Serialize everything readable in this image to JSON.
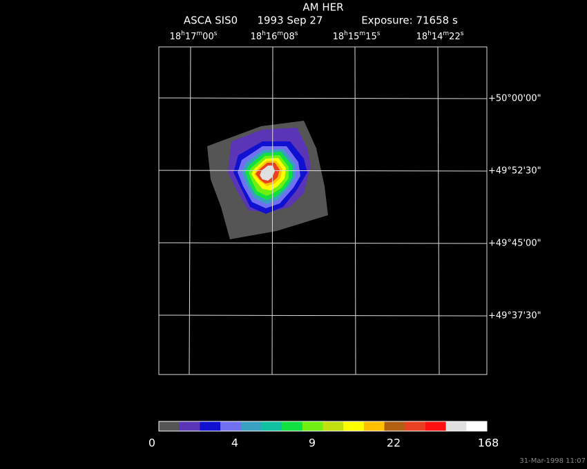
{
  "title": "AM HER",
  "subtitle": {
    "instrument": "ASCA SIS0",
    "date": "1993 Sep 27",
    "exposure": "Exposure: 71658 s"
  },
  "ra_labels": [
    "18h17m00s",
    "18h16m08s",
    "18h15m15s",
    "18h14m22s"
  ],
  "dec_labels": [
    "+50°00'00\"",
    "+49°52'30\"",
    "+49°45'00\"",
    "+49°37'30\""
  ],
  "colorbar": {
    "colors": [
      "#555555",
      "#5a35b5",
      "#1010d0",
      "#7070f0",
      "#3aa0c0",
      "#10c0a0",
      "#10e040",
      "#70f010",
      "#c0e010",
      "#ffff00",
      "#ffc000",
      "#b06010",
      "#e84020",
      "#ff1010",
      "#e0e0e0",
      "#ffffff"
    ],
    "labels": [
      "0",
      "4",
      "9",
      "22",
      "168"
    ]
  },
  "timestamp": "31-Mar-1998 11:07"
}
